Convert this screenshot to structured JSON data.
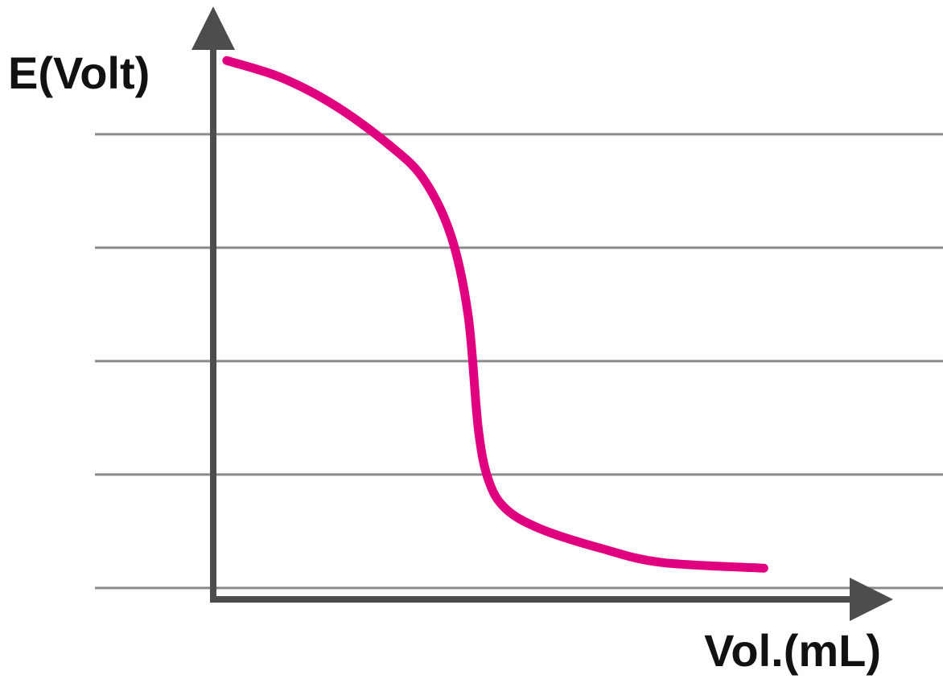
{
  "chart_data": {
    "type": "line",
    "xlabel": "Vol.(mL)",
    "ylabel": "E(Volt)",
    "xlim": [
      0,
      10
    ],
    "ylim": [
      0,
      10
    ],
    "grid": true,
    "gridlines_y": [
      0.2,
      2.2,
      4.2,
      6.2,
      8.2
    ],
    "tick_labels_shown": false,
    "series": [
      {
        "color": "#e0007f",
        "x": [
          0.2,
          1.0,
          1.8,
          2.6,
          3.1,
          3.5,
          3.75,
          3.9,
          4.05,
          4.3,
          4.8,
          5.7,
          6.6,
          8.1
        ],
        "y": [
          9.5,
          9.2,
          8.7,
          8.0,
          7.4,
          6.4,
          5.0,
          3.0,
          2.1,
          1.6,
          1.25,
          0.9,
          0.65,
          0.55
        ]
      }
    ]
  }
}
